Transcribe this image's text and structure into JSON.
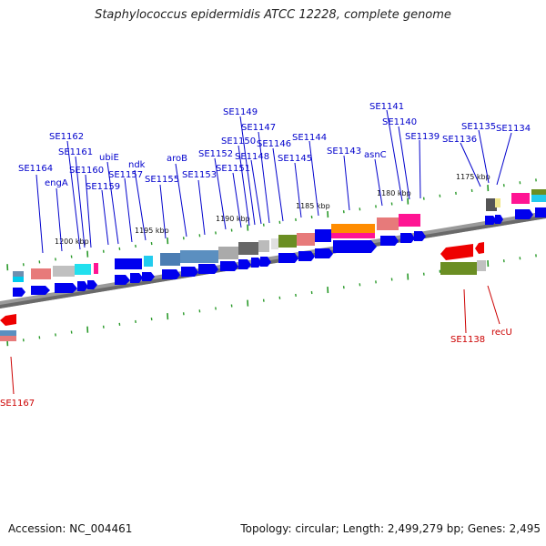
{
  "title": "Staphylococcus epidermidis ATCC 12228, complete genome",
  "footer": {
    "accession": "Accession: NC_004461",
    "topology": "Topology: circular; Length: 2,499,279 bp; Genes: 2,495"
  },
  "colors": {
    "gene_arrow_forward": "#0000ee",
    "gene_arrow_reverse": "#ee0000",
    "label_forward": "#0000cc",
    "label_reverse": "#cc0000",
    "backbone": "#8a8a8a",
    "tick": "#2a9a2a"
  },
  "ticks": [
    {
      "label": "1200 kbp"
    },
    {
      "label": "1195 kbp"
    },
    {
      "label": "1190 kbp"
    },
    {
      "label": "1185 kbp"
    },
    {
      "label": "1180 kbp"
    },
    {
      "label": "1175 kbp"
    }
  ],
  "forward_labels": [
    {
      "id": "SE1164"
    },
    {
      "id": "engA"
    },
    {
      "id": "SE1162"
    },
    {
      "id": "SE1161"
    },
    {
      "id": "SE1160"
    },
    {
      "id": "SE1159"
    },
    {
      "id": "ubiE"
    },
    {
      "id": "SE1157"
    },
    {
      "id": "ndk"
    },
    {
      "id": "SE1155"
    },
    {
      "id": "aroB"
    },
    {
      "id": "SE1153"
    },
    {
      "id": "SE1152"
    },
    {
      "id": "SE1151"
    },
    {
      "id": "SE1150"
    },
    {
      "id": "SE1149"
    },
    {
      "id": "SE1148"
    },
    {
      "id": "SE1147"
    },
    {
      "id": "SE1146"
    },
    {
      "id": "SE1145"
    },
    {
      "id": "SE1144"
    },
    {
      "id": "SE1143"
    },
    {
      "id": "asnC"
    },
    {
      "id": "SE1141"
    },
    {
      "id": "SE1140"
    },
    {
      "id": "SE1139"
    },
    {
      "id": "SE1136"
    },
    {
      "id": "SE1135"
    },
    {
      "id": "SE1134"
    }
  ],
  "reverse_labels": [
    {
      "id": "SE1138"
    },
    {
      "id": "recU"
    },
    {
      "id": "SE1167"
    }
  ]
}
